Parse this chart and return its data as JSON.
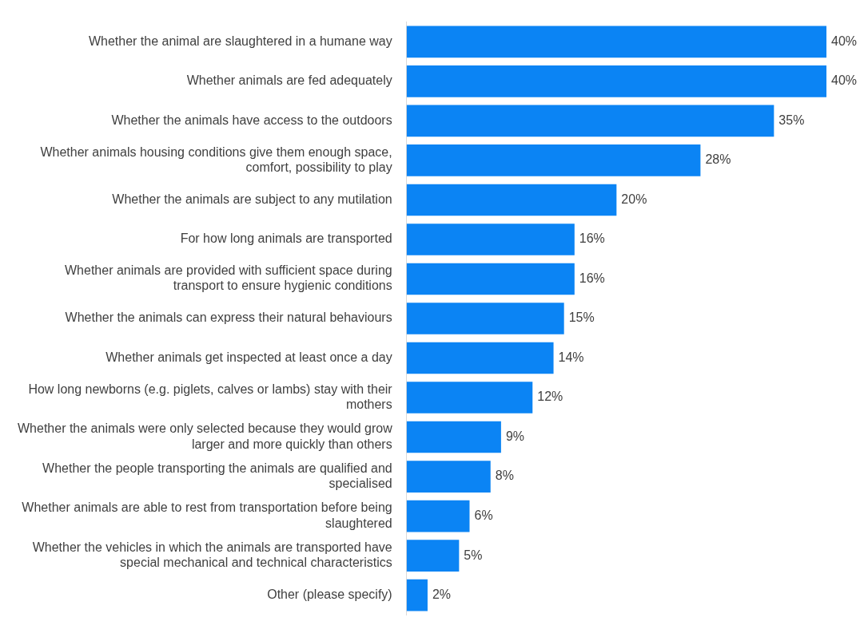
{
  "chart_data": {
    "type": "bar",
    "orientation": "horizontal",
    "categories": [
      "Whether the animal are slaughtered in a humane way",
      "Whether animals are fed adequately",
      "Whether the animals have access to the outdoors",
      "Whether animals housing conditions give them enough space, comfort, possibility to play",
      "Whether the animals are subject to any mutilation",
      "For how long animals are transported",
      "Whether animals are provided with sufficient space during transport to ensure hygienic conditions",
      "Whether the animals can express their natural behaviours",
      "Whether animals get inspected at least once a day",
      "How long newborns (e.g. piglets, calves or lambs) stay with their mothers",
      "Whether the animals were only selected because they would grow larger and more quickly than others",
      "Whether the people transporting the animals are qualified and specialised",
      "Whether animals are able to rest from transportation before being slaughtered",
      "Whether the vehicles in which the animals are transported have special mechanical and technical characteristics",
      "Other (please specify)"
    ],
    "values": [
      40,
      40,
      35,
      28,
      20,
      16,
      16,
      15,
      14,
      12,
      9,
      8,
      6,
      5,
      2
    ],
    "value_labels": [
      "40%",
      "40%",
      "35%",
      "28%",
      "20%",
      "16%",
      "16%",
      "15%",
      "14%",
      "12%",
      "9%",
      "8%",
      "6%",
      "5%",
      "2%"
    ],
    "color": "#0b84f4",
    "legend": false
  }
}
